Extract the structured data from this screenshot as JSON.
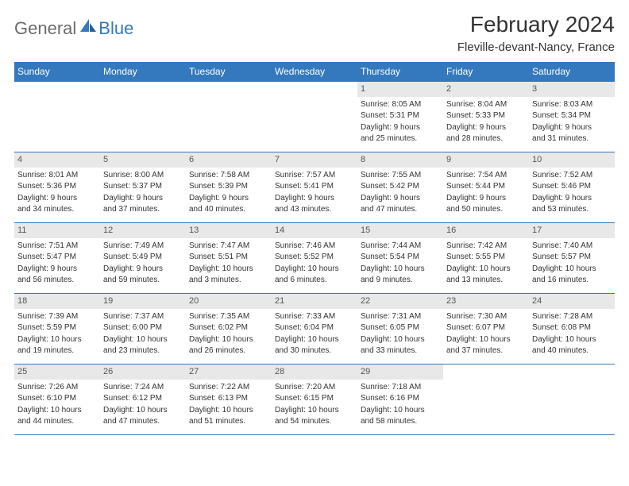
{
  "logo": {
    "text1": "General",
    "text2": "Blue"
  },
  "title": "February 2024",
  "location": "Fleville-devant-Nancy, France",
  "colors": {
    "header_bg": "#3478bd",
    "header_text": "#ffffff",
    "daynum_bg": "#e8e8e8",
    "border": "#3478bd",
    "logo_gray": "#6b6b6b",
    "logo_blue": "#3478bd"
  },
  "dayNames": [
    "Sunday",
    "Monday",
    "Tuesday",
    "Wednesday",
    "Thursday",
    "Friday",
    "Saturday"
  ],
  "labels": {
    "sunrise": "Sunrise:",
    "sunset": "Sunset:",
    "daylight": "Daylight:"
  },
  "weeks": [
    [
      {
        "empty": true
      },
      {
        "empty": true
      },
      {
        "empty": true
      },
      {
        "empty": true
      },
      {
        "n": "1",
        "sr": "8:05 AM",
        "ss": "5:31 PM",
        "dl1": "9 hours",
        "dl2": "and 25 minutes."
      },
      {
        "n": "2",
        "sr": "8:04 AM",
        "ss": "5:33 PM",
        "dl1": "9 hours",
        "dl2": "and 28 minutes."
      },
      {
        "n": "3",
        "sr": "8:03 AM",
        "ss": "5:34 PM",
        "dl1": "9 hours",
        "dl2": "and 31 minutes."
      }
    ],
    [
      {
        "n": "4",
        "sr": "8:01 AM",
        "ss": "5:36 PM",
        "dl1": "9 hours",
        "dl2": "and 34 minutes."
      },
      {
        "n": "5",
        "sr": "8:00 AM",
        "ss": "5:37 PM",
        "dl1": "9 hours",
        "dl2": "and 37 minutes."
      },
      {
        "n": "6",
        "sr": "7:58 AM",
        "ss": "5:39 PM",
        "dl1": "9 hours",
        "dl2": "and 40 minutes."
      },
      {
        "n": "7",
        "sr": "7:57 AM",
        "ss": "5:41 PM",
        "dl1": "9 hours",
        "dl2": "and 43 minutes."
      },
      {
        "n": "8",
        "sr": "7:55 AM",
        "ss": "5:42 PM",
        "dl1": "9 hours",
        "dl2": "and 47 minutes."
      },
      {
        "n": "9",
        "sr": "7:54 AM",
        "ss": "5:44 PM",
        "dl1": "9 hours",
        "dl2": "and 50 minutes."
      },
      {
        "n": "10",
        "sr": "7:52 AM",
        "ss": "5:46 PM",
        "dl1": "9 hours",
        "dl2": "and 53 minutes."
      }
    ],
    [
      {
        "n": "11",
        "sr": "7:51 AM",
        "ss": "5:47 PM",
        "dl1": "9 hours",
        "dl2": "and 56 minutes."
      },
      {
        "n": "12",
        "sr": "7:49 AM",
        "ss": "5:49 PM",
        "dl1": "9 hours",
        "dl2": "and 59 minutes."
      },
      {
        "n": "13",
        "sr": "7:47 AM",
        "ss": "5:51 PM",
        "dl1": "10 hours",
        "dl2": "and 3 minutes."
      },
      {
        "n": "14",
        "sr": "7:46 AM",
        "ss": "5:52 PM",
        "dl1": "10 hours",
        "dl2": "and 6 minutes."
      },
      {
        "n": "15",
        "sr": "7:44 AM",
        "ss": "5:54 PM",
        "dl1": "10 hours",
        "dl2": "and 9 minutes."
      },
      {
        "n": "16",
        "sr": "7:42 AM",
        "ss": "5:55 PM",
        "dl1": "10 hours",
        "dl2": "and 13 minutes."
      },
      {
        "n": "17",
        "sr": "7:40 AM",
        "ss": "5:57 PM",
        "dl1": "10 hours",
        "dl2": "and 16 minutes."
      }
    ],
    [
      {
        "n": "18",
        "sr": "7:39 AM",
        "ss": "5:59 PM",
        "dl1": "10 hours",
        "dl2": "and 19 minutes."
      },
      {
        "n": "19",
        "sr": "7:37 AM",
        "ss": "6:00 PM",
        "dl1": "10 hours",
        "dl2": "and 23 minutes."
      },
      {
        "n": "20",
        "sr": "7:35 AM",
        "ss": "6:02 PM",
        "dl1": "10 hours",
        "dl2": "and 26 minutes."
      },
      {
        "n": "21",
        "sr": "7:33 AM",
        "ss": "6:04 PM",
        "dl1": "10 hours",
        "dl2": "and 30 minutes."
      },
      {
        "n": "22",
        "sr": "7:31 AM",
        "ss": "6:05 PM",
        "dl1": "10 hours",
        "dl2": "and 33 minutes."
      },
      {
        "n": "23",
        "sr": "7:30 AM",
        "ss": "6:07 PM",
        "dl1": "10 hours",
        "dl2": "and 37 minutes."
      },
      {
        "n": "24",
        "sr": "7:28 AM",
        "ss": "6:08 PM",
        "dl1": "10 hours",
        "dl2": "and 40 minutes."
      }
    ],
    [
      {
        "n": "25",
        "sr": "7:26 AM",
        "ss": "6:10 PM",
        "dl1": "10 hours",
        "dl2": "and 44 minutes."
      },
      {
        "n": "26",
        "sr": "7:24 AM",
        "ss": "6:12 PM",
        "dl1": "10 hours",
        "dl2": "and 47 minutes."
      },
      {
        "n": "27",
        "sr": "7:22 AM",
        "ss": "6:13 PM",
        "dl1": "10 hours",
        "dl2": "and 51 minutes."
      },
      {
        "n": "28",
        "sr": "7:20 AM",
        "ss": "6:15 PM",
        "dl1": "10 hours",
        "dl2": "and 54 minutes."
      },
      {
        "n": "29",
        "sr": "7:18 AM",
        "ss": "6:16 PM",
        "dl1": "10 hours",
        "dl2": "and 58 minutes."
      },
      {
        "empty": true
      },
      {
        "empty": true
      }
    ]
  ]
}
